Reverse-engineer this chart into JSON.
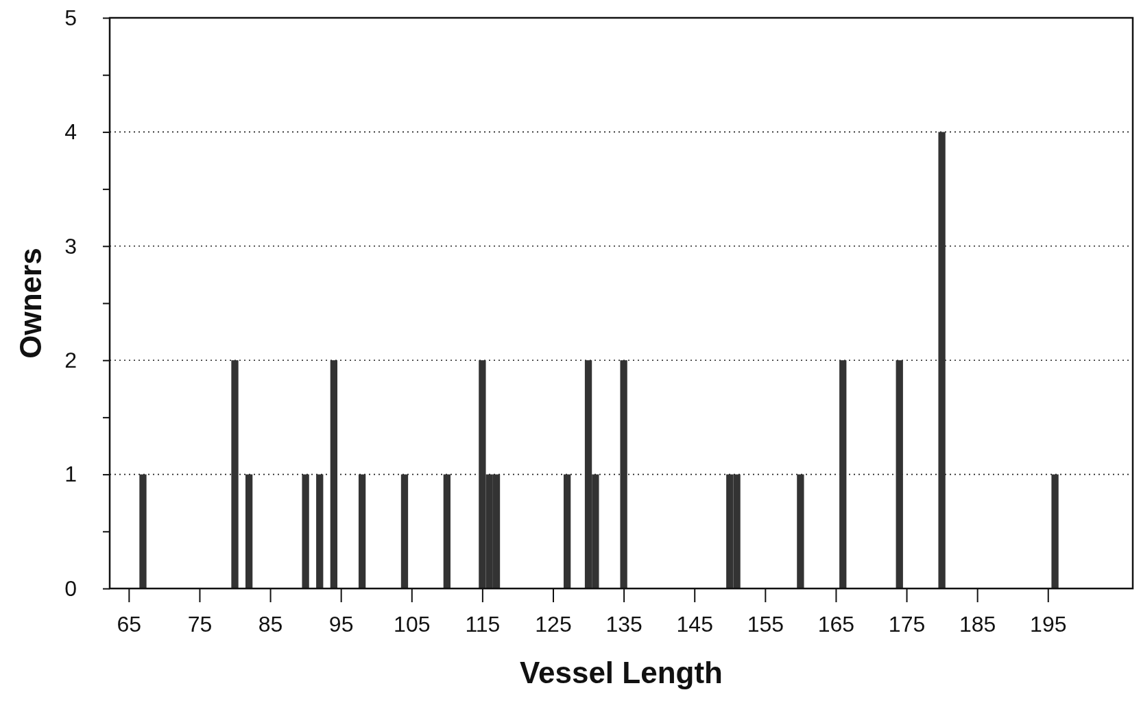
{
  "chart_data": {
    "type": "bar",
    "xlabel": "Vessel Length",
    "ylabel": "Owners",
    "x": [
      67,
      80,
      82,
      90,
      92,
      94,
      98,
      104,
      110,
      115,
      116,
      117,
      127,
      130,
      131,
      135,
      150,
      151,
      160,
      166,
      174,
      180,
      196
    ],
    "values": [
      1,
      2,
      1,
      1,
      1,
      2,
      1,
      1,
      1,
      2,
      1,
      1,
      1,
      2,
      1,
      2,
      1,
      1,
      1,
      2,
      2,
      4,
      1
    ],
    "color": "#333333",
    "xlim": [
      62.3,
      207
    ],
    "xticks": [
      65,
      75,
      85,
      95,
      105,
      115,
      125,
      135,
      145,
      155,
      165,
      175,
      185,
      195
    ],
    "ylim": [
      0,
      5
    ],
    "yticks": [
      0,
      {
        "value": 0.5,
        "label": null
      },
      1,
      {
        "value": 1.5,
        "label": null
      },
      2,
      {
        "value": 2.5,
        "label": null
      },
      3,
      {
        "value": 3.5,
        "label": null
      },
      4,
      {
        "value": 4.5,
        "label": null
      },
      5
    ],
    "grid": "y"
  }
}
